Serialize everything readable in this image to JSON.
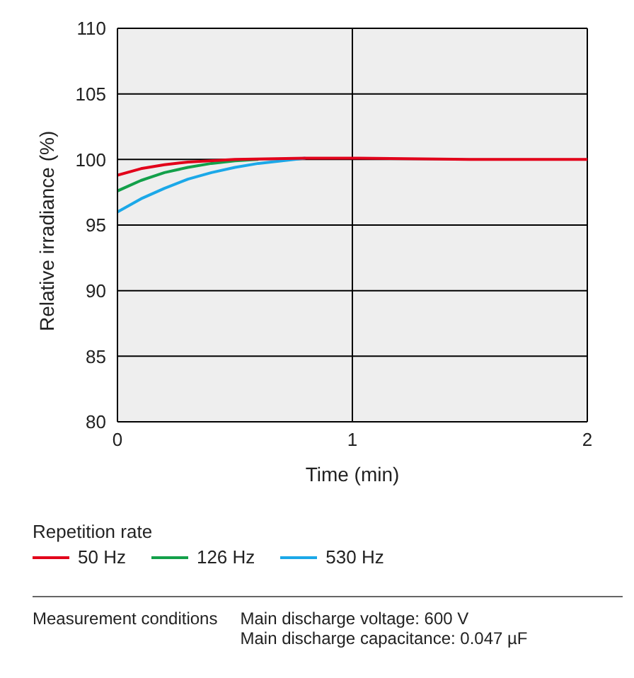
{
  "chart_data": {
    "type": "line",
    "xlabel": "Time (min)",
    "ylabel": "Relative irradiance (%)",
    "legend_title": "Repetition rate",
    "legend": "bottom",
    "grid": true,
    "xlim": [
      0,
      2
    ],
    "xticks": [
      0,
      1,
      2
    ],
    "ylim": [
      80,
      110
    ],
    "yticks": [
      80,
      85,
      90,
      95,
      100,
      105,
      110
    ],
    "marker": "none",
    "line_style": "solid",
    "series": [
      {
        "name": "50 Hz",
        "color": "#e2001a",
        "x": [
          0,
          0.1,
          0.2,
          0.3,
          0.5,
          0.8,
          1,
          1.5,
          2
        ],
        "values": [
          98.8,
          99.3,
          99.6,
          99.8,
          100,
          100.1,
          100.1,
          100,
          100
        ]
      },
      {
        "name": "126 Hz",
        "color": "#13a04a",
        "x": [
          0,
          0.1,
          0.2,
          0.3,
          0.4,
          0.5,
          0.6
        ],
        "values": [
          97.6,
          98.4,
          99,
          99.4,
          99.7,
          99.9,
          100
        ]
      },
      {
        "name": "530 Hz",
        "color": "#1ba8e8",
        "x": [
          0,
          0.1,
          0.2,
          0.3,
          0.4,
          0.5,
          0.6,
          0.7,
          0.8
        ],
        "values": [
          96,
          97,
          97.8,
          98.5,
          99,
          99.4,
          99.7,
          99.9,
          100.1
        ]
      }
    ],
    "annotations": [
      "Measurement conditions",
      "Main discharge voltage: 600 V",
      "Main discharge capacitance: 0.047 µF"
    ]
  }
}
